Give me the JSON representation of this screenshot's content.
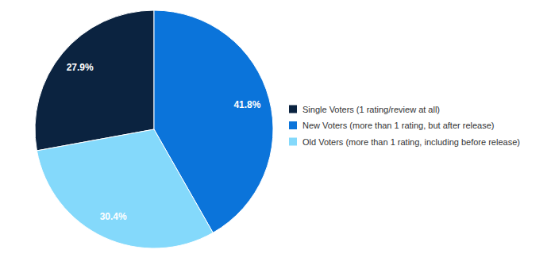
{
  "chart_data": {
    "type": "pie",
    "categories": [
      "Single Voters (1 rating/review at all)",
      "New Voters (more than 1 rating, but after release)",
      "Old Voters (more than 1 rating, including before release)"
    ],
    "values": [
      27.9,
      41.8,
      30.4
    ],
    "value_labels": [
      "27.9%",
      "41.8%",
      "30.4%"
    ],
    "colors": [
      "#0b2340",
      "#0b74da",
      "#84d9fb"
    ],
    "data_labels": true,
    "legend": "right"
  }
}
